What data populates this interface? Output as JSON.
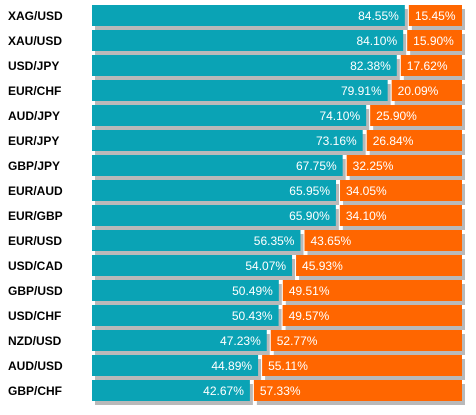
{
  "chart_data": {
    "type": "bar",
    "stacked": true,
    "orientation": "horizontal",
    "categories": [
      "XAG/USD",
      "XAU/USD",
      "USD/JPY",
      "EUR/CHF",
      "AUD/JPY",
      "EUR/JPY",
      "GBP/JPY",
      "EUR/AUD",
      "EUR/GBP",
      "EUR/USD",
      "USD/CAD",
      "GBP/USD",
      "USD/CHF",
      "NZD/USD",
      "AUD/USD",
      "GBP/CHF"
    ],
    "series": [
      {
        "values": [
          84.55,
          84.1,
          82.38,
          79.91,
          74.1,
          73.16,
          67.75,
          65.95,
          65.9,
          56.35,
          54.07,
          50.49,
          50.43,
          47.23,
          44.89,
          42.67
        ],
        "labels": [
          "84.55%",
          "84.10%",
          "82.38%",
          "79.91%",
          "74.10%",
          "73.16%",
          "67.75%",
          "65.95%",
          "65.90%",
          "56.35%",
          "54.07%",
          "50.49%",
          "50.43%",
          "47.23%",
          "44.89%",
          "42.67%"
        ]
      },
      {
        "values": [
          15.45,
          15.9,
          17.62,
          20.09,
          25.9,
          26.84,
          32.25,
          34.05,
          34.1,
          43.65,
          45.93,
          49.51,
          49.57,
          52.77,
          55.11,
          57.33
        ],
        "labels": [
          "15.45%",
          "15.90%",
          "17.62%",
          "20.09%",
          "25.90%",
          "26.84%",
          "32.25%",
          "34.05%",
          "34.10%",
          "43.65%",
          "45.93%",
          "49.51%",
          "49.57%",
          "52.77%",
          "55.11%",
          "57.33%"
        ]
      }
    ],
    "xlim": [
      0,
      100
    ],
    "colors": {
      "series_1": "#0aa3b5",
      "series_2": "#ff6600",
      "shadow": "#b9b9b9",
      "label_text": "#ffffff",
      "category_text": "#000000"
    },
    "title": "",
    "xlabel": "",
    "ylabel": "",
    "grid": false,
    "legend": "none"
  }
}
